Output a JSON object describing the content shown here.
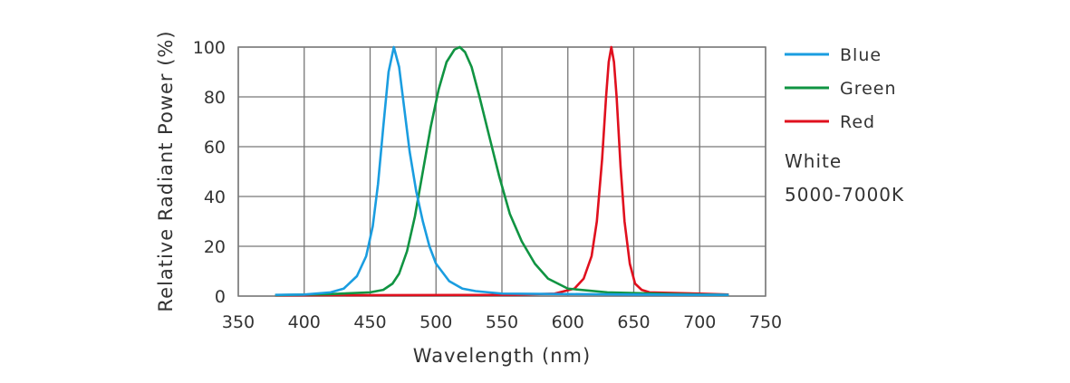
{
  "chart_data": {
    "type": "line",
    "title": "",
    "xlabel": "Wavelength (nm)",
    "ylabel": "Relative Radiant Power (%)",
    "xlim": [
      350,
      750
    ],
    "ylim": [
      0,
      100
    ],
    "xticks": [
      350,
      400,
      450,
      500,
      550,
      600,
      650,
      700,
      750
    ],
    "yticks": [
      0,
      20,
      40,
      60,
      80,
      100
    ],
    "grid": true,
    "legend_position": "right",
    "note": [
      "White",
      "5000-7000K"
    ],
    "series": [
      {
        "name": "Blue",
        "color": "#1a9de0",
        "x": [
          378,
          400,
          420,
          430,
          440,
          447,
          452,
          456,
          460,
          464,
          468,
          472,
          476,
          480,
          485,
          490,
          495,
          500,
          510,
          520,
          530,
          550,
          600,
          650,
          722
        ],
        "y": [
          0.5,
          0.6,
          1.5,
          3,
          8,
          16,
          28,
          45,
          68,
          90,
          100,
          92,
          75,
          58,
          42,
          30,
          20,
          13,
          6,
          3,
          2,
          1,
          0.8,
          0.6,
          0.5
        ]
      },
      {
        "name": "Green",
        "color": "#109442",
        "x": [
          378,
          420,
          450,
          460,
          467,
          472,
          478,
          484,
          490,
          496,
          502,
          508,
          514,
          518,
          522,
          527,
          533,
          540,
          548,
          556,
          565,
          575,
          585,
          600,
          630,
          680,
          722
        ],
        "y": [
          0.4,
          0.8,
          1.5,
          2.5,
          5,
          9,
          18,
          32,
          50,
          68,
          83,
          94,
          99,
          100,
          98,
          92,
          80,
          65,
          48,
          33,
          22,
          13,
          7,
          3,
          1.5,
          0.8,
          0.5
        ]
      },
      {
        "name": "Red",
        "color": "#e0101e",
        "x": [
          378,
          560,
          590,
          605,
          612,
          618,
          622,
          626,
          629,
          631,
          633,
          635,
          637,
          640,
          643,
          647,
          651,
          656,
          662,
          700,
          722
        ],
        "y": [
          0.3,
          0.5,
          1,
          3,
          7,
          16,
          30,
          55,
          80,
          94,
          100,
          94,
          80,
          52,
          30,
          13,
          5,
          2.5,
          1.5,
          1,
          0.6
        ]
      }
    ]
  }
}
